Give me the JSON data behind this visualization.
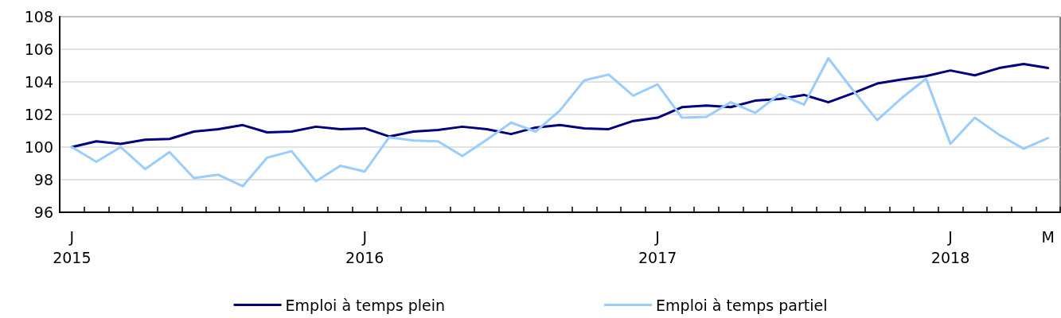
{
  "chart_data": {
    "type": "line",
    "categories": [
      "J\n2015",
      null,
      null,
      null,
      null,
      null,
      null,
      null,
      null,
      null,
      null,
      null,
      "J\n2016",
      null,
      null,
      null,
      null,
      null,
      null,
      null,
      null,
      null,
      null,
      null,
      "J\n2017",
      null,
      null,
      null,
      null,
      null,
      null,
      null,
      null,
      null,
      null,
      null,
      "J\n2018",
      null,
      null,
      null,
      "M"
    ],
    "series": [
      {
        "name": "Emploi à temps plein",
        "color": "#000080",
        "values": [
          100,
          100.35,
          100.2,
          100.45,
          100.5,
          100.95,
          101.1,
          101.35,
          100.9,
          100.95,
          101.25,
          101.1,
          101.15,
          100.65,
          100.95,
          101.05,
          101.25,
          101.1,
          100.8,
          101.2,
          101.35,
          101.15,
          101.1,
          101.6,
          101.8,
          102.45,
          102.55,
          102.45,
          102.85,
          102.95,
          103.2,
          102.75,
          103.3,
          103.9,
          104.15,
          104.35,
          104.7,
          104.4,
          104.85,
          105.1,
          104.85
        ]
      },
      {
        "name": "Emploi à temps partiel",
        "color": "#99ccff",
        "values": [
          100,
          99.1,
          100,
          98.65,
          99.7,
          98.1,
          98.3,
          97.6,
          99.35,
          99.75,
          97.9,
          98.85,
          98.5,
          100.6,
          100.4,
          100.35,
          99.45,
          100.45,
          101.5,
          100.95,
          102.25,
          104.1,
          104.45,
          103.15,
          103.85,
          101.8,
          101.85,
          102.75,
          102.1,
          103.25,
          102.6,
          105.45,
          103.5,
          101.65,
          103.0,
          104.2,
          100.2,
          101.8,
          100.75,
          99.9,
          100.55
        ]
      }
    ],
    "ylim": [
      96,
      108
    ],
    "yticks": [
      96,
      98,
      100,
      102,
      104,
      106,
      108
    ],
    "grid": "y",
    "legend": "bottom",
    "marker": "none",
    "line_style": "solid"
  }
}
